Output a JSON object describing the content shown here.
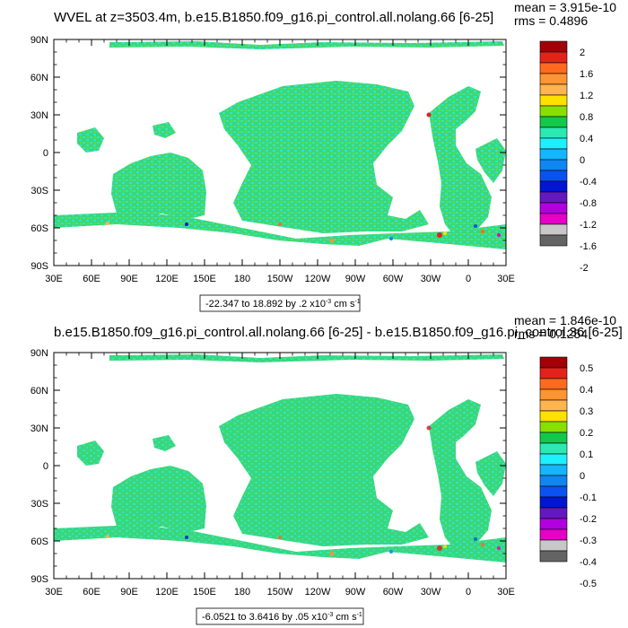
{
  "chart_data": [
    {
      "type": "heatmap",
      "title": "WVEL at z=3503.4m, b.e15.B1850.f09_g16.pi_control.all.nolang.66 [6-25]",
      "stats": {
        "mean": "mean = 3.915e-10",
        "rms": "rms = 0.4896"
      },
      "x_ticks": [
        "30E",
        "60E",
        "90E",
        "120E",
        "150E",
        "180",
        "150W",
        "120W",
        "90W",
        "60W",
        "30W",
        "0",
        "30E"
      ],
      "y_ticks": [
        "90N",
        "60N",
        "30N",
        "0",
        "30S",
        "60S",
        "90S"
      ],
      "range_label": {
        "main": "-22.347 to 18.892 by .2 x10",
        "exp": "-3",
        "unit": " cm s",
        "unit_exp": "-1"
      },
      "colorbar": {
        "labels": [
          "2",
          "1.6",
          "1.2",
          "0.8",
          "0.4",
          "0",
          "-0.4",
          "-0.8",
          "-1.2",
          "-1.6",
          "-2"
        ],
        "colors": [
          "#a30008",
          "#e3231b",
          "#ff6a1e",
          "#ff9432",
          "#ffb44d",
          "#ffe000",
          "#88e000",
          "#13c84a",
          "#2ee8b4",
          "#1ef0ff",
          "#13b6ff",
          "#0f86f0",
          "#0a53f0",
          "#0016d2",
          "#6418be",
          "#b000e0",
          "#e600c8",
          "#c8c8c8",
          "#646464"
        ]
      }
    },
    {
      "type": "heatmap",
      "title": "b.e15.B1850.f09_g16.pi_control.all.nolang.66 [6-25] - b.e15.B1850.f09_g16.pi_control.36 [6-25]",
      "stats": {
        "mean": "mean = 1.846e-10",
        "rms": "rms = 0.1254"
      },
      "x_ticks": [
        "30E",
        "60E",
        "90E",
        "120E",
        "150E",
        "180",
        "150W",
        "120W",
        "90W",
        "60W",
        "30W",
        "0",
        "30E"
      ],
      "y_ticks": [
        "90N",
        "60N",
        "30N",
        "0",
        "30S",
        "60S",
        "90S"
      ],
      "range_label": {
        "main": "-6.0521 to 3.6416 by .05 x10",
        "exp": "-3",
        "unit": " cm s",
        "unit_exp": "-1"
      },
      "colorbar": {
        "labels": [
          "0.5",
          "0.4",
          "0.3",
          "0.2",
          "0.1",
          "0",
          "-0.1",
          "-0.2",
          "-0.3",
          "-0.4",
          "-0.5"
        ],
        "colors": [
          "#a30008",
          "#e3231b",
          "#ff6a1e",
          "#ff9432",
          "#ffb44d",
          "#ffe000",
          "#88e000",
          "#13c84a",
          "#2ee8b4",
          "#1ef0ff",
          "#13b6ff",
          "#0f86f0",
          "#0a53f0",
          "#0016d2",
          "#6418be",
          "#b000e0",
          "#e600c8",
          "#c8c8c8",
          "#646464"
        ]
      }
    }
  ]
}
